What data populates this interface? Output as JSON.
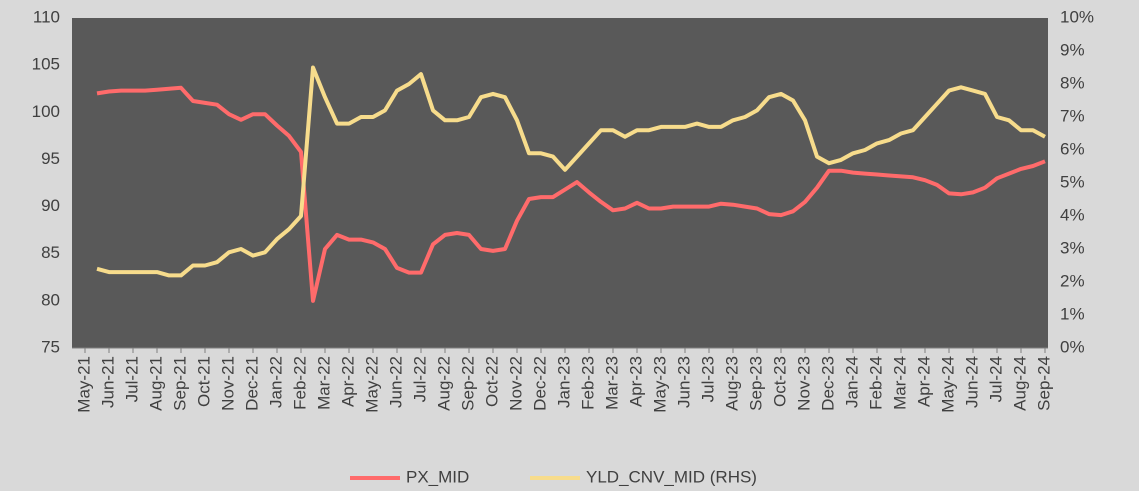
{
  "chart_data": {
    "type": "line",
    "categories": [
      "May-21",
      null,
      "Jun-21",
      null,
      "Jul-21",
      null,
      "Aug-21",
      null,
      "Sep-21",
      null,
      "Oct-21",
      null,
      "Nov-21",
      null,
      "Dec-21",
      null,
      "Jan-22",
      null,
      "Feb-22",
      null,
      "Mar-22",
      null,
      "Apr-22",
      null,
      "May-22",
      null,
      "Jun-22",
      null,
      "Jul-22",
      null,
      "Aug-22",
      null,
      "Sep-22",
      null,
      "Oct-22",
      null,
      "Nov-22",
      null,
      "Dec-22",
      null,
      "Jan-23",
      null,
      "Feb-23",
      null,
      "Mar-23",
      null,
      "Apr-23",
      null,
      "May-23",
      null,
      "Jun-23",
      null,
      "Jul-23",
      null,
      "Aug-23",
      null,
      "Sep-23",
      null,
      "Oct-23",
      null,
      "Nov-23",
      null,
      "Dec-23",
      null,
      "Jan-24",
      null,
      "Feb-24",
      null,
      "Mar-24",
      null,
      "Apr-24",
      null,
      "May-24",
      null,
      "Jun-24",
      null,
      "Jul-24",
      null,
      "Aug-24",
      null,
      "Sep-24"
    ],
    "series": [
      {
        "name": "PX_MID",
        "color": "#ff6b6b",
        "values": [
          null,
          102,
          102.2,
          102.3,
          102.3,
          102.3,
          102.4,
          102.5,
          102.6,
          101.2,
          101,
          100.8,
          99.8,
          99.2,
          99.8,
          99.8,
          98.6,
          97.5,
          95.8,
          80,
          85.5,
          87,
          86.5,
          86.5,
          86.2,
          85.5,
          83.5,
          83,
          83,
          86,
          87,
          87.2,
          87,
          85.5,
          85.3,
          85.5,
          88.5,
          90.8,
          91,
          91,
          91.8,
          92.6,
          91.5,
          90.5,
          89.6,
          89.8,
          90.4,
          89.8,
          89.8,
          90,
          90,
          90,
          90,
          90.3,
          90.2,
          90,
          89.8,
          89.2,
          89.1,
          89.5,
          90.5,
          92,
          93.8,
          93.8,
          93.6,
          93.5,
          93.4,
          93.3,
          93.2,
          93.1,
          92.8,
          92.3,
          91.4,
          91.3,
          91.5,
          92,
          93,
          93.5,
          94,
          94.3,
          94.8
        ]
      },
      {
        "name": "YLD_CNV_MID (RHS)",
        "color": "#f7dc8c",
        "axis": "y2",
        "values": [
          null,
          2.4,
          2.3,
          2.3,
          2.3,
          2.3,
          2.3,
          2.2,
          2.2,
          2.5,
          2.5,
          2.6,
          2.9,
          3.0,
          2.8,
          2.9,
          3.3,
          3.6,
          4.0,
          8.5,
          7.6,
          6.8,
          6.8,
          7.0,
          7.0,
          7.2,
          7.8,
          8.0,
          8.3,
          7.2,
          6.9,
          6.9,
          7.0,
          7.6,
          7.7,
          7.6,
          6.9,
          5.9,
          5.9,
          5.8,
          5.4,
          5.8,
          6.2,
          6.6,
          6.6,
          6.4,
          6.6,
          6.6,
          6.7,
          6.7,
          6.7,
          6.8,
          6.7,
          6.7,
          6.9,
          7.0,
          7.2,
          7.6,
          7.7,
          7.5,
          6.9,
          5.8,
          5.6,
          5.7,
          5.9,
          6.0,
          6.2,
          6.3,
          6.5,
          6.6,
          7.0,
          7.4,
          7.8,
          7.9,
          7.8,
          7.7,
          7.0,
          6.9,
          6.6,
          6.6,
          6.4
        ]
      }
    ],
    "ylim": [
      75,
      110
    ],
    "yticks": [
      75,
      80,
      85,
      90,
      95,
      100,
      105,
      110
    ],
    "y2lim": [
      0,
      10
    ],
    "y2ticks": [
      {
        "value": 0,
        "label": "0%"
      },
      {
        "value": 1,
        "label": "1%"
      },
      {
        "value": 2,
        "label": "2%"
      },
      {
        "value": 3,
        "label": "3%"
      },
      {
        "value": 4,
        "label": "4%"
      },
      {
        "value": 5,
        "label": "5%"
      },
      {
        "value": 6,
        "label": "6%"
      },
      {
        "value": 7,
        "label": "7%"
      },
      {
        "value": 8,
        "label": "8%"
      },
      {
        "value": 9,
        "label": "9%"
      },
      {
        "value": 10,
        "label": "10%"
      }
    ],
    "grid": false,
    "legend": "bottom"
  }
}
